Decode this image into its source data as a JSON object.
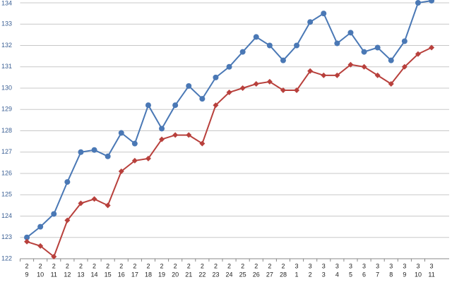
{
  "chart_data": {
    "type": "line",
    "categories": [
      [
        "2",
        "9"
      ],
      [
        "2",
        "10"
      ],
      [
        "2",
        "11"
      ],
      [
        "2",
        "12"
      ],
      [
        "2",
        "13"
      ],
      [
        "2",
        "14"
      ],
      [
        "2",
        "15"
      ],
      [
        "2",
        "16"
      ],
      [
        "2",
        "17"
      ],
      [
        "2",
        "18"
      ],
      [
        "2",
        "19"
      ],
      [
        "2",
        "20"
      ],
      [
        "2",
        "21"
      ],
      [
        "2",
        "22"
      ],
      [
        "2",
        "23"
      ],
      [
        "2",
        "24"
      ],
      [
        "2",
        "25"
      ],
      [
        "2",
        "26"
      ],
      [
        "2",
        "27"
      ],
      [
        "2",
        "28"
      ],
      [
        "3",
        "1"
      ],
      [
        "3",
        "2"
      ],
      [
        "3",
        "3"
      ],
      [
        "3",
        "4"
      ],
      [
        "3",
        "5"
      ],
      [
        "3",
        "6"
      ],
      [
        "3",
        "7"
      ],
      [
        "3",
        "8"
      ],
      [
        "3",
        "9"
      ],
      [
        "3",
        "10"
      ],
      [
        "3",
        "11"
      ]
    ],
    "series": [
      {
        "color": "#4a78b5",
        "marker": "circle",
        "values": [
          123.0,
          123.5,
          124.1,
          125.6,
          127.0,
          127.1,
          126.8,
          127.9,
          127.4,
          129.2,
          128.1,
          129.2,
          130.1,
          129.5,
          130.5,
          131.0,
          131.7,
          132.4,
          132.0,
          131.3,
          132.0,
          133.1,
          133.5,
          132.1,
          132.6,
          131.7,
          131.9,
          131.3,
          132.2,
          134.0,
          134.1
        ]
      },
      {
        "color": "#b8403c",
        "marker": "diamond",
        "values": [
          122.8,
          122.6,
          122.1,
          123.8,
          124.6,
          124.8,
          124.5,
          126.1,
          126.6,
          126.7,
          127.6,
          127.8,
          127.8,
          127.4,
          129.2,
          129.8,
          130.0,
          130.2,
          130.3,
          129.9,
          129.9,
          130.8,
          130.6,
          130.6,
          131.1,
          131.0,
          130.6,
          130.2,
          131.0,
          131.6,
          131.9
        ]
      }
    ],
    "ylim": [
      122,
      134
    ],
    "yticks": [
      122,
      123,
      124,
      125,
      126,
      127,
      128,
      129,
      130,
      131,
      132,
      133,
      134
    ],
    "grid": true
  }
}
